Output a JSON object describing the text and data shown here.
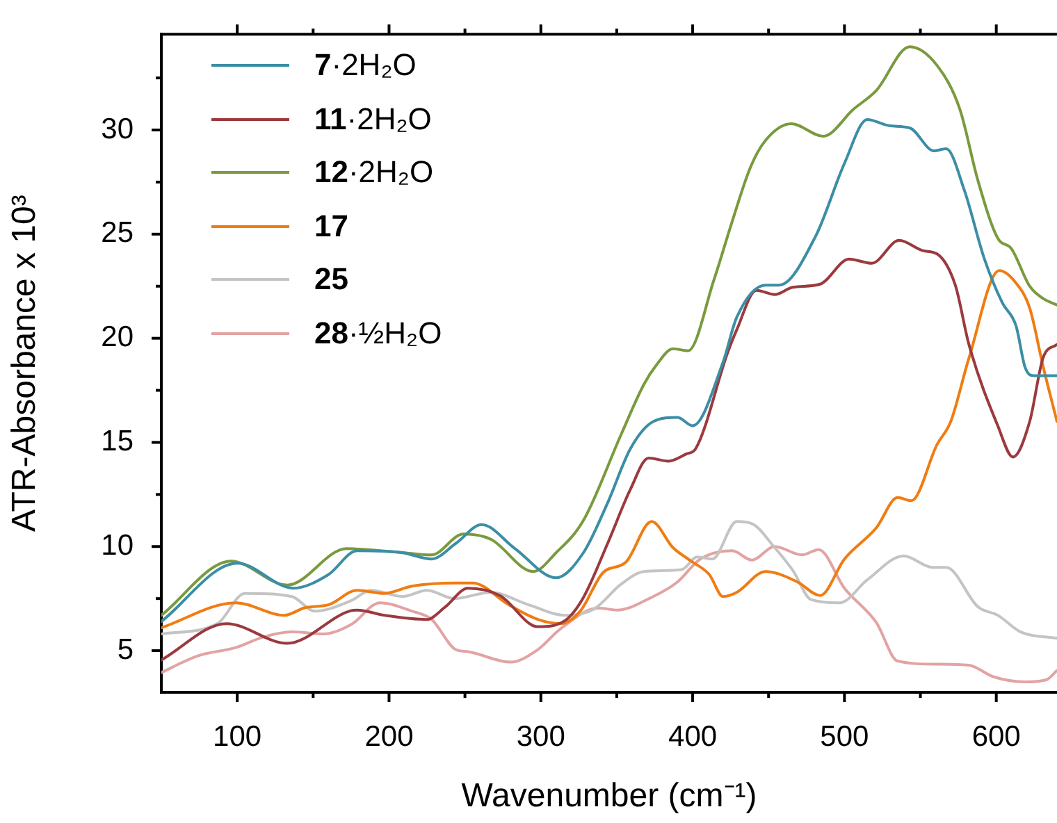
{
  "chart_data": {
    "type": "line",
    "xlabel": "Wavenumber (cm⁻¹)",
    "ylabel": "ATR-Absorbance x 10³",
    "xlim": [
      50,
      640
    ],
    "ylim": [
      3,
      34.6
    ],
    "xticks": [
      100,
      200,
      300,
      400,
      500,
      600,
      {
        "value": 150,
        "label": null
      },
      {
        "value": 250,
        "label": null
      },
      {
        "value": 350,
        "label": null
      },
      {
        "value": 450,
        "label": null
      },
      {
        "value": 550,
        "label": null
      }
    ],
    "yticks": [
      5,
      10,
      15,
      20,
      25,
      30,
      {
        "value": 7.5,
        "label": null
      },
      {
        "value": 12.5,
        "label": null
      },
      {
        "value": 17.5,
        "label": null
      },
      {
        "value": 22.5,
        "label": null
      },
      {
        "value": 27.5,
        "label": null
      },
      {
        "value": 32.5,
        "label": null
      }
    ],
    "grid": false,
    "legend": "top left",
    "marker": "none",
    "line_style": "solid",
    "series": [
      {
        "name": "7·2H₂O",
        "color": "#3b8ea5",
        "x": [
          50,
          100,
          137,
          160,
          179,
          209,
          228,
          244,
          261,
          283,
          310,
          328,
          344,
          359,
          374,
          390,
          400,
          420,
          429,
          448,
          457,
          481,
          500,
          515,
          530,
          543,
          559,
          567,
          579,
          592,
          604,
          613,
          619,
          625,
          640
        ],
        "values": [
          6.4,
          9.2,
          8.0,
          8.65,
          9.8,
          9.7,
          9.4,
          10.15,
          11.05,
          9.9,
          8.5,
          9.7,
          12.1,
          14.7,
          16.0,
          16.2,
          15.8,
          18.85,
          21.0,
          22.55,
          22.55,
          24.9,
          28.4,
          30.5,
          30.2,
          30.1,
          29.0,
          29.1,
          27.1,
          23.85,
          21.7,
          20.6,
          18.6,
          18.2,
          18.2
        ]
      },
      {
        "name": "11·2H₂O",
        "color": "#9b3a3e",
        "x": [
          50,
          93,
          133,
          179,
          197,
          225,
          237,
          252,
          273,
          298,
          316,
          328,
          344,
          359,
          371,
          384,
          396,
          402,
          423,
          429,
          442,
          454,
          466,
          484,
          503,
          518,
          536,
          552,
          561,
          573,
          582,
          601,
          611,
          622,
          631,
          640
        ],
        "values": [
          4.55,
          6.3,
          5.35,
          6.95,
          6.7,
          6.5,
          7.1,
          8.0,
          7.65,
          6.15,
          6.45,
          7.55,
          10.15,
          12.75,
          14.25,
          14.1,
          14.45,
          14.7,
          19.3,
          20.4,
          22.3,
          22.1,
          22.45,
          22.6,
          23.8,
          23.6,
          24.7,
          24.2,
          24.05,
          22.55,
          19.7,
          15.8,
          14.3,
          16.0,
          19.1,
          19.7
        ]
      },
      {
        "name": "12·2H₂O",
        "color": "#7a9a3e",
        "x": [
          50,
          96,
          133,
          172,
          203,
          228,
          249,
          267,
          295,
          310,
          328,
          353,
          368,
          376,
          387,
          397,
          414,
          426,
          438,
          448,
          465,
          486,
          506,
          521,
          543,
          561,
          576,
          588,
          601,
          610,
          622,
          631,
          640
        ],
        "values": [
          6.7,
          9.3,
          8.15,
          9.9,
          9.75,
          9.6,
          10.6,
          10.35,
          8.8,
          9.7,
          11.25,
          15.4,
          17.8,
          18.7,
          19.5,
          19.4,
          22.8,
          25.6,
          28.2,
          29.5,
          30.3,
          29.7,
          31.0,
          31.9,
          34.0,
          33.1,
          31.0,
          27.55,
          24.8,
          24.3,
          22.5,
          21.9,
          21.6
        ]
      },
      {
        "name": "17",
        "color": "#f07c12",
        "x": [
          50,
          99,
          131,
          145,
          160,
          179,
          197,
          215,
          244,
          255,
          279,
          298,
          313,
          326,
          341,
          356,
          373,
          387,
          399,
          411,
          420,
          429,
          448,
          469,
          484,
          500,
          521,
          535,
          544,
          561,
          570,
          582,
          602,
          613,
          622,
          631,
          640
        ],
        "values": [
          6.1,
          7.3,
          6.7,
          7.07,
          7.2,
          7.9,
          7.75,
          8.1,
          8.25,
          8.25,
          7.2,
          6.5,
          6.3,
          6.9,
          8.75,
          9.25,
          11.2,
          9.95,
          9.3,
          8.65,
          7.6,
          7.8,
          8.8,
          8.3,
          7.65,
          9.4,
          10.9,
          12.35,
          12.2,
          14.9,
          16.0,
          19.05,
          23.25,
          22.65,
          21.45,
          18.6,
          16.0
        ]
      },
      {
        "name": "25",
        "color": "#c4c4c4",
        "x": [
          50,
          87,
          105,
          136,
          151,
          175,
          188,
          209,
          225,
          243,
          267,
          292,
          316,
          335,
          353,
          368,
          393,
          403,
          413,
          429,
          439,
          454,
          466,
          478,
          497,
          515,
          539,
          558,
          567,
          588,
          601,
          616,
          640
        ],
        "values": [
          5.8,
          6.3,
          7.75,
          7.6,
          6.9,
          7.4,
          7.9,
          7.6,
          7.9,
          7.5,
          7.8,
          7.2,
          6.7,
          7.0,
          8.2,
          8.8,
          8.9,
          9.5,
          9.4,
          11.2,
          11.1,
          9.95,
          8.85,
          7.45,
          7.3,
          8.4,
          9.55,
          9.0,
          9.0,
          7.1,
          6.7,
          5.9,
          5.6
        ]
      },
      {
        "name": "28·½H₂O",
        "color": "#e3a3a3",
        "x": [
          50,
          74,
          99,
          117,
          136,
          157,
          175,
          194,
          215,
          228,
          244,
          252,
          280,
          298,
          313,
          338,
          350,
          374,
          390,
          405,
          426,
          439,
          454,
          472,
          483,
          500,
          521,
          535,
          561,
          582,
          598,
          619,
          633,
          640
        ],
        "values": [
          3.95,
          4.75,
          5.15,
          5.65,
          5.9,
          5.8,
          6.25,
          7.3,
          6.9,
          6.5,
          5.05,
          4.95,
          4.45,
          5.05,
          6.05,
          7.05,
          6.95,
          7.6,
          8.3,
          9.4,
          9.8,
          9.35,
          10.0,
          9.6,
          9.85,
          8.0,
          6.35,
          4.5,
          4.35,
          4.3,
          3.75,
          3.5,
          3.6,
          4.05
        ]
      }
    ]
  }
}
